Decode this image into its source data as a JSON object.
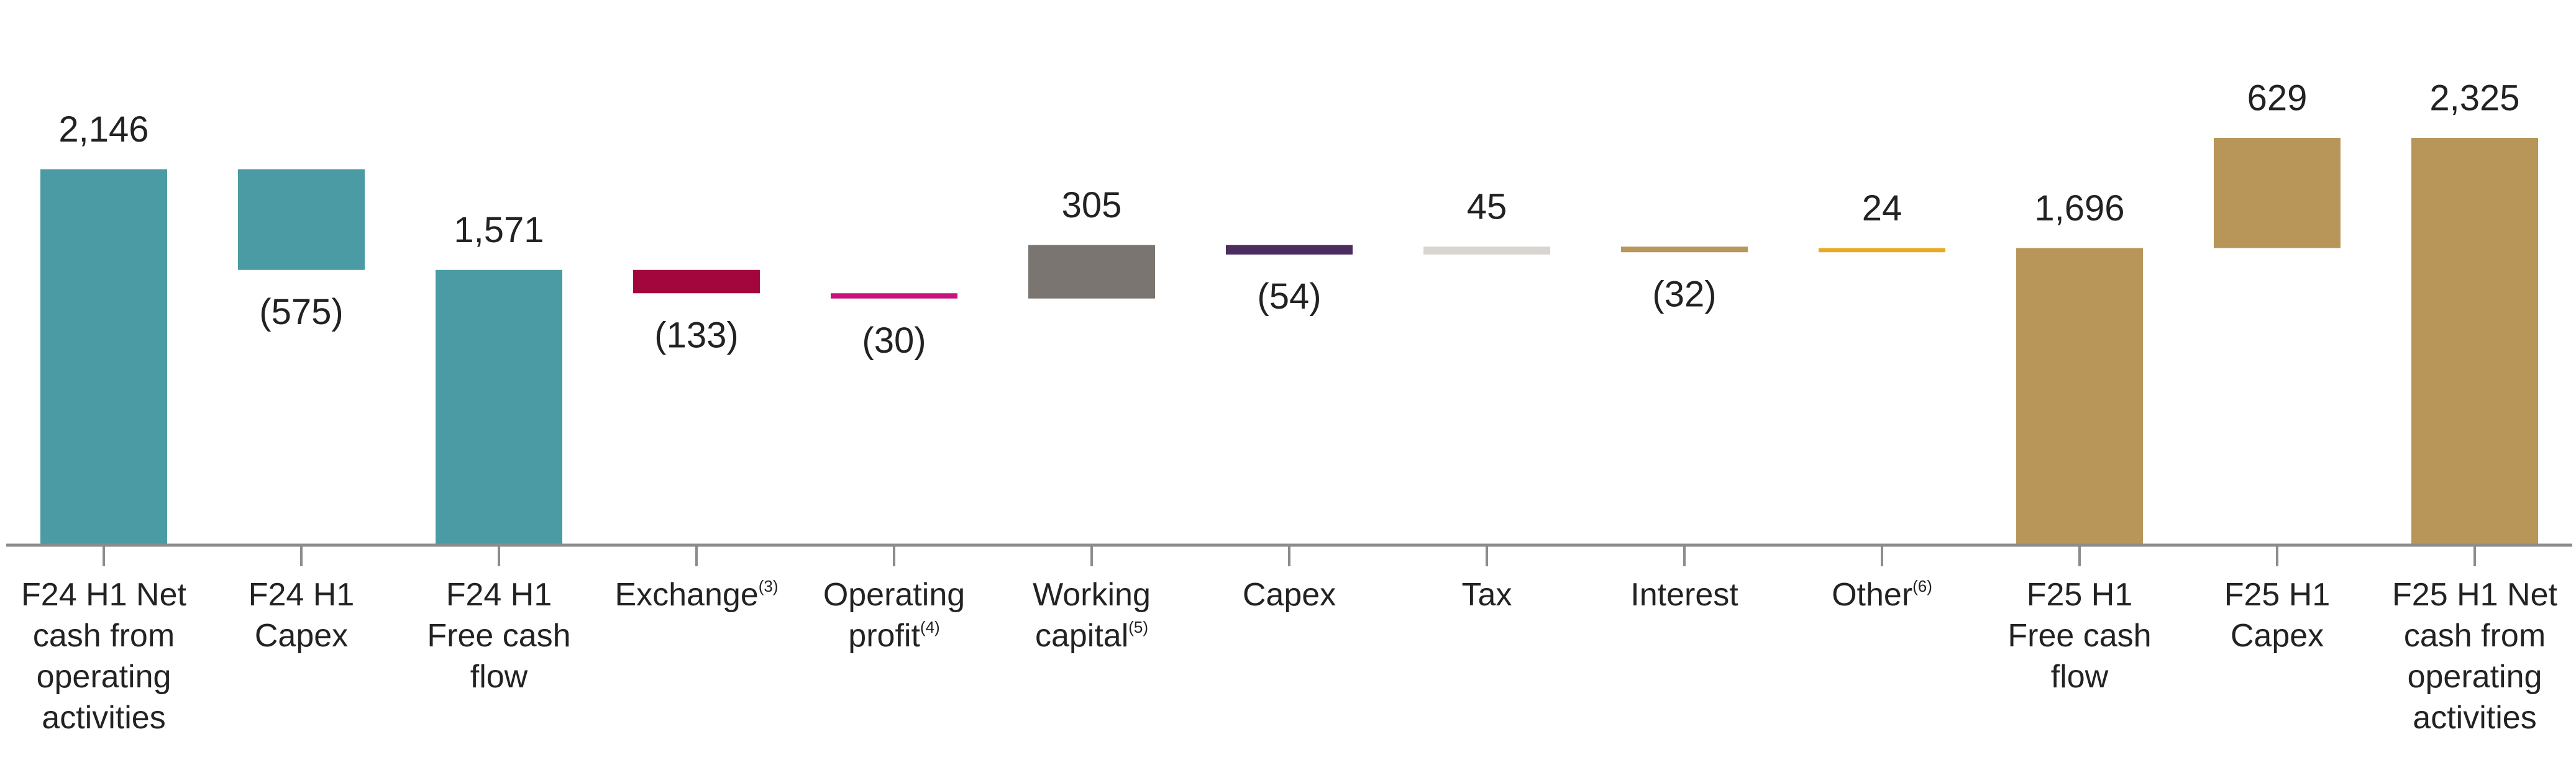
{
  "chart_data": {
    "type": "waterfall",
    "categories": [
      "F24 H1 Net cash from operating activities",
      "F24 H1 Capex",
      "F24 H1 Free cash flow",
      "Exchange",
      "Operating profit",
      "Working capital",
      "Capex",
      "Tax",
      "Interest",
      "Other",
      "F25 H1 Free cash flow",
      "F25 H1 Capex",
      "F25 H1 Net cash from operating activities"
    ],
    "footnotes": [
      null,
      null,
      null,
      "(3)",
      "(4)",
      "(5)",
      null,
      null,
      null,
      "(6)",
      null,
      null,
      null
    ],
    "values": [
      2146,
      -575,
      1571,
      -133,
      -30,
      305,
      -54,
      45,
      -32,
      24,
      1696,
      629,
      2325
    ],
    "value_labels": [
      "2,146",
      "(575)",
      "1,571",
      "(133)",
      "(30)",
      "305",
      "(54)",
      "45",
      "(32)",
      "24",
      "1,696",
      "629",
      "2,325"
    ],
    "measure": [
      "absolute",
      "relative",
      "absolute",
      "relative",
      "relative",
      "relative",
      "relative",
      "relative",
      "relative",
      "relative",
      "absolute",
      "relative",
      "absolute"
    ],
    "colors": [
      "#4a9ba3",
      "#4a9ba3",
      "#4a9ba3",
      "#a3063d",
      "#c9137f",
      "#7a7570",
      "#4b2d5f",
      "#d9d4cf",
      "#b8975c",
      "#e9a923",
      "#b8965a",
      "#b8965a",
      "#b8965a"
    ]
  }
}
